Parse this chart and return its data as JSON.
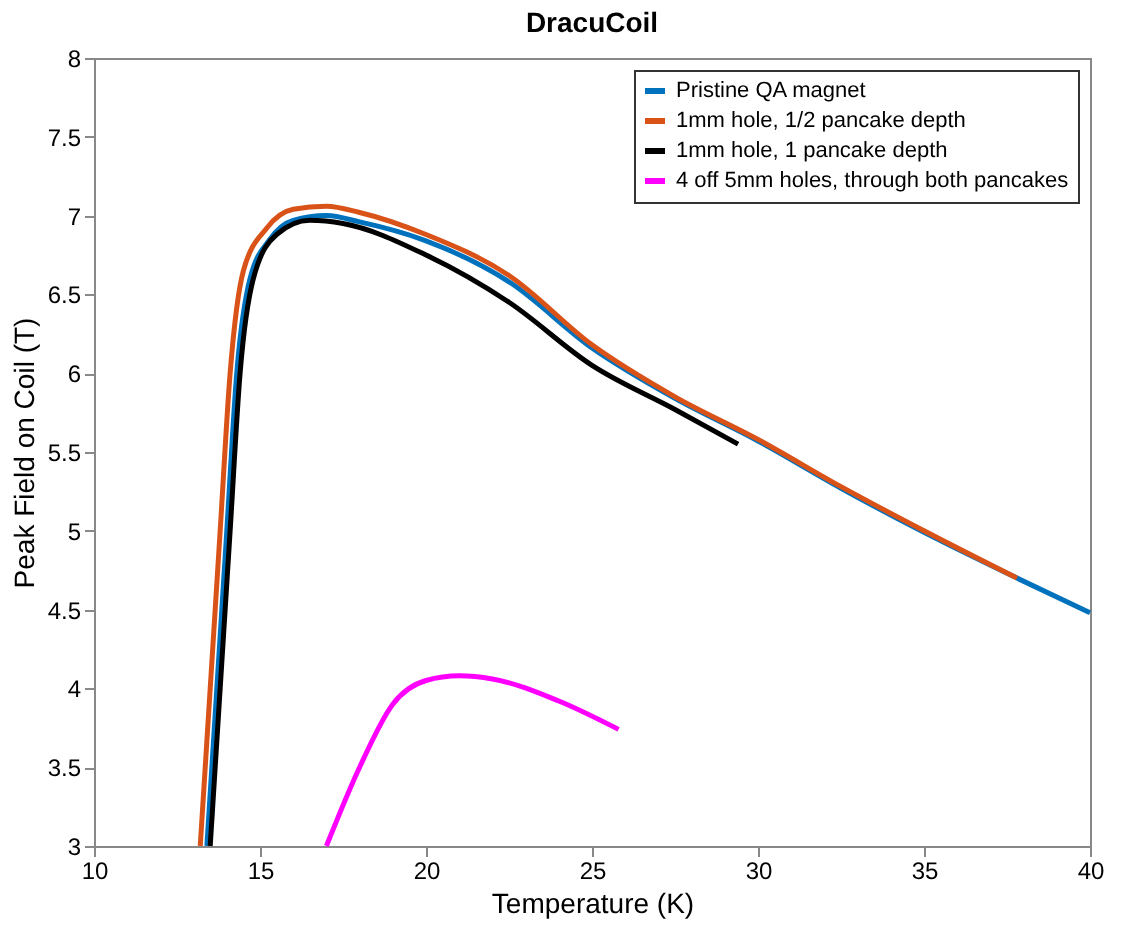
{
  "chart_data": {
    "type": "line",
    "title": "DracuCoil",
    "xlabel": "Temperature (K)",
    "ylabel": "Peak Field on Coil (T)",
    "xlim": [
      10,
      40
    ],
    "ylim": [
      3,
      8
    ],
    "xticks": [
      10,
      15,
      20,
      25,
      30,
      35,
      40
    ],
    "yticks": [
      3,
      3.5,
      4,
      4.5,
      5,
      5.5,
      6,
      6.5,
      7,
      7.5,
      8
    ],
    "grid": false,
    "legend": "top right",
    "marker": "none",
    "line_style": "solid",
    "series": [
      {
        "name": "Pristine QA magnet",
        "color": "#0072bd",
        "x": [
          13.4,
          13.7,
          14.0,
          14.3,
          14.7,
          15.3,
          16,
          17,
          18,
          20,
          22.5,
          25,
          27.5,
          30,
          32.5,
          35,
          37.8,
          40
        ],
        "values": [
          3,
          4,
          5,
          6,
          6.6,
          6.85,
          6.97,
          7.0,
          6.96,
          6.84,
          6.58,
          6.16,
          5.84,
          5.57,
          5.27,
          4.99,
          4.7,
          4.48
        ]
      },
      {
        "name": "1mm hole, 1/2 pancake depth",
        "color": "#d95319",
        "x": [
          13.2,
          13.5,
          13.8,
          14.1,
          14.5,
          15.2,
          16,
          17,
          18,
          20,
          22.5,
          25,
          27.5,
          30,
          32.5,
          35,
          37.8
        ],
        "values": [
          3,
          4,
          5,
          6,
          6.65,
          6.92,
          7.04,
          7.06,
          7.02,
          6.88,
          6.62,
          6.18,
          5.85,
          5.58,
          5.28,
          5.0,
          4.7
        ]
      },
      {
        "name": "1mm hole, 1 pancake depth",
        "color": "#000000",
        "x": [
          13.5,
          13.8,
          14.1,
          14.4,
          14.8,
          15.5,
          16.5,
          17.5,
          20,
          22.5,
          25,
          27.5,
          29.4
        ],
        "values": [
          3,
          4,
          5,
          6,
          6.6,
          6.88,
          6.97,
          6.95,
          6.75,
          6.45,
          6.05,
          5.77,
          5.55
        ]
      },
      {
        "name": "4 off 5mm holes, through both pancakes",
        "color": "#ff00ff",
        "x": [
          17,
          18,
          19,
          20,
          21,
          22,
          24,
          25.8
        ],
        "values": [
          3,
          3.5,
          3.9,
          4.05,
          4.08,
          4.06,
          3.92,
          3.74
        ]
      }
    ]
  }
}
